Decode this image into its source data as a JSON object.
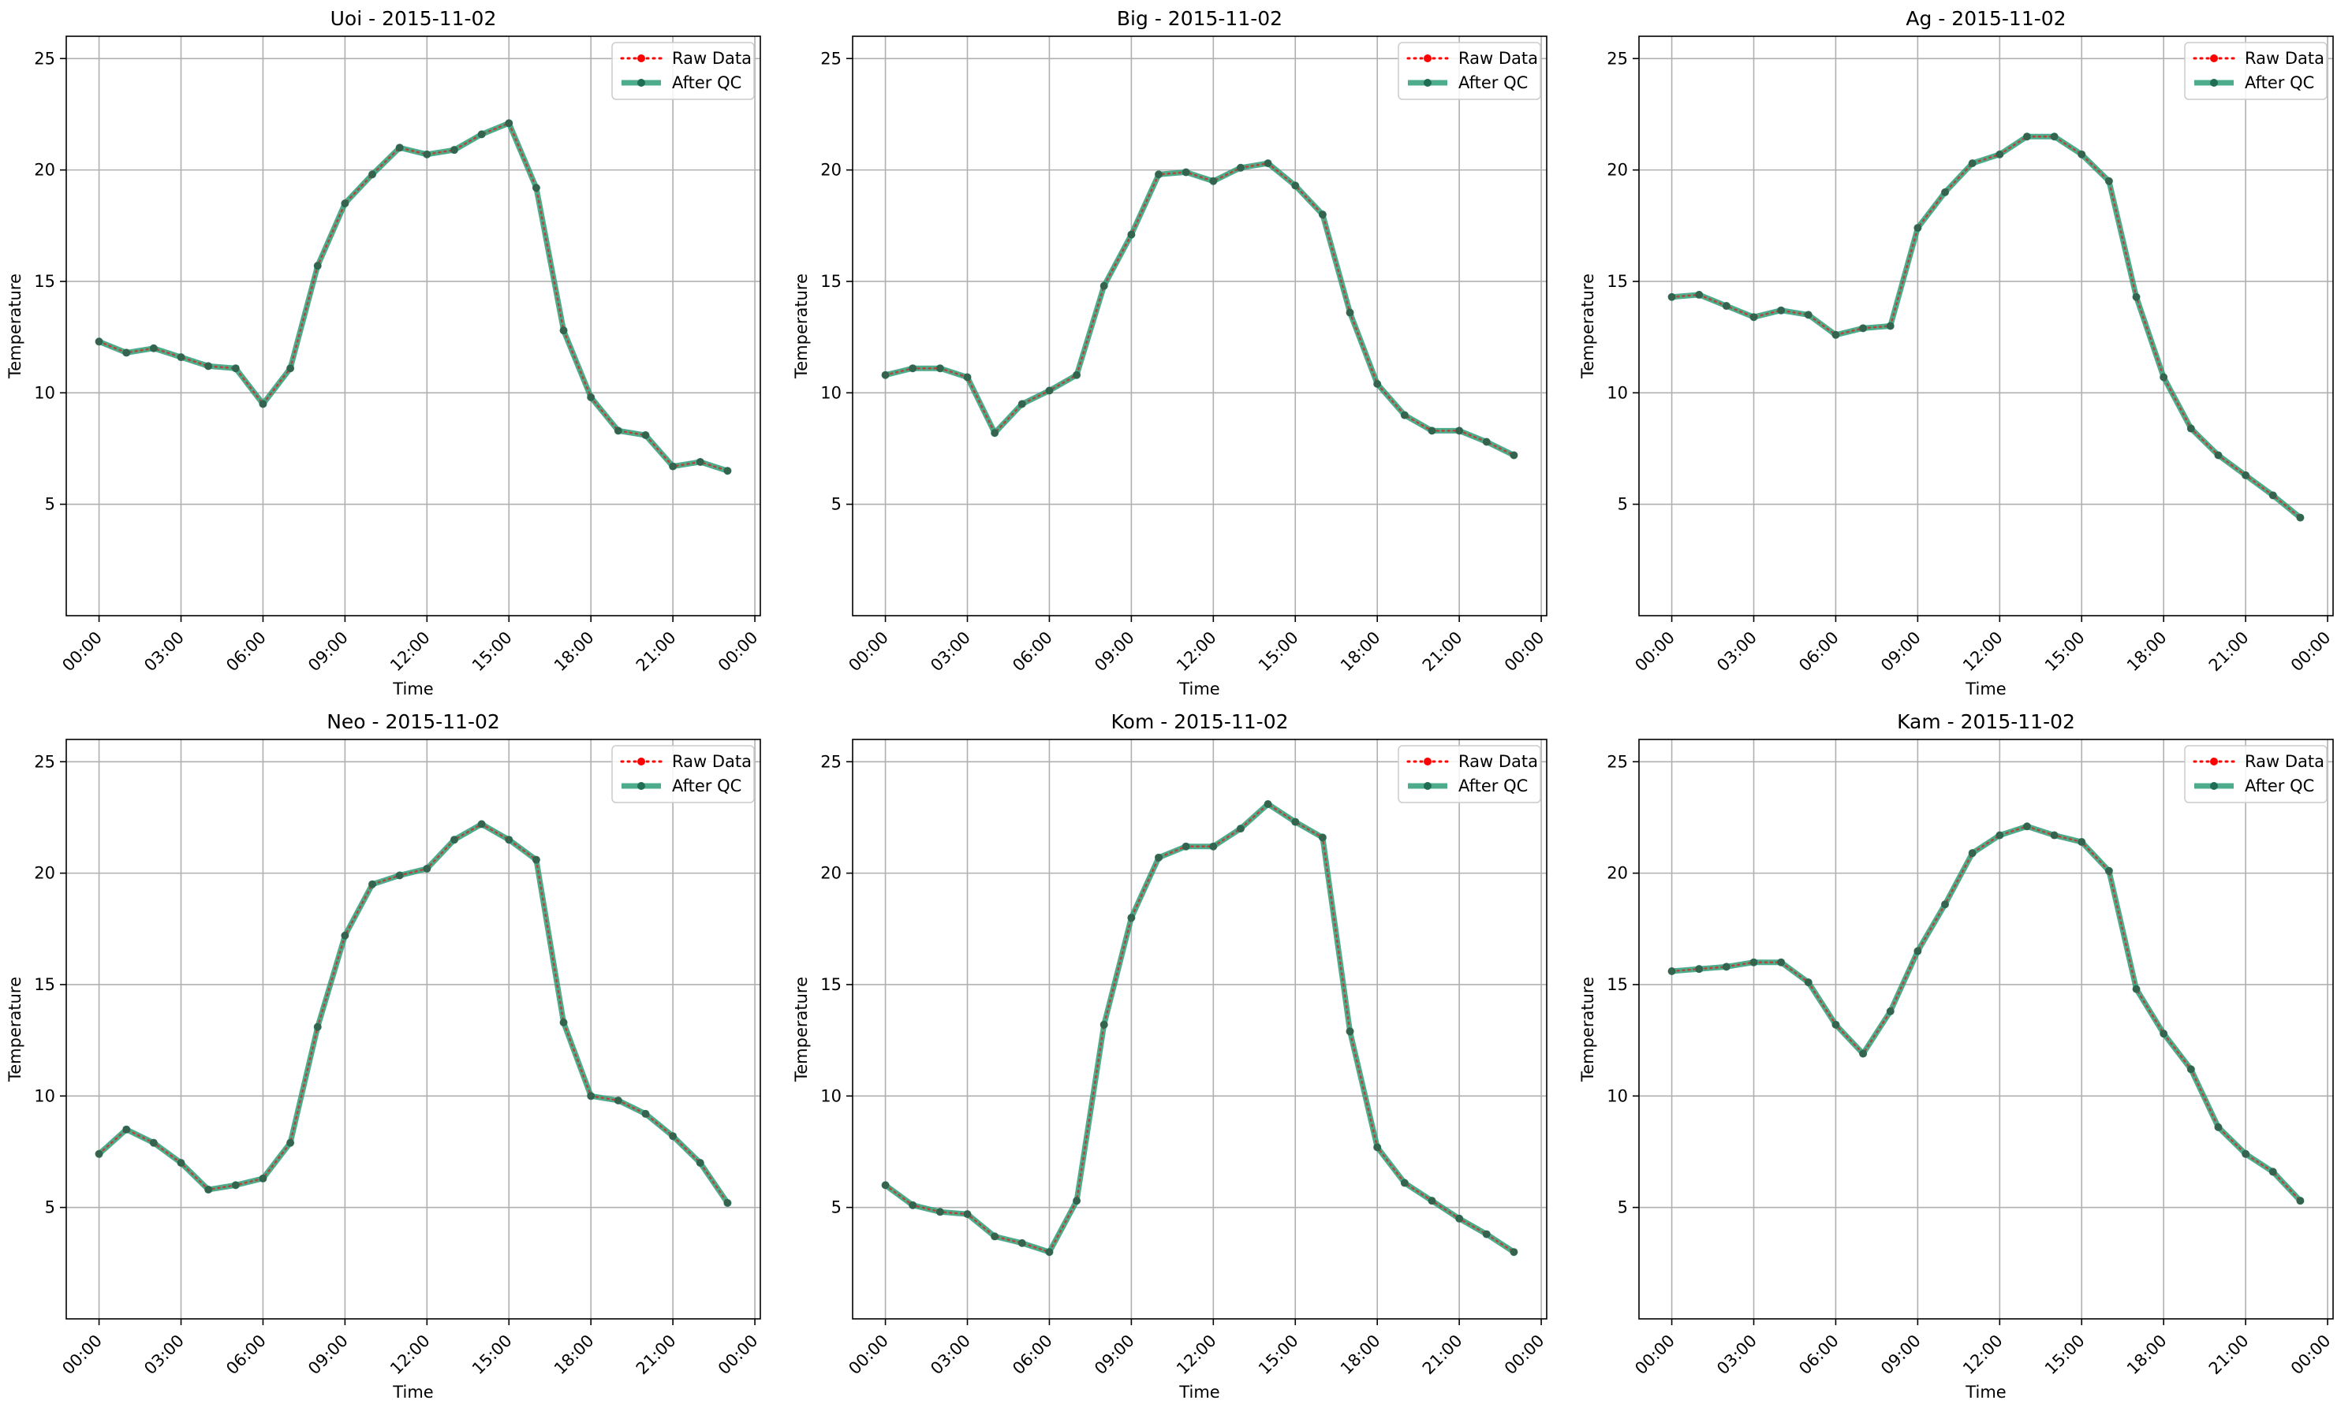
{
  "figure": {
    "colors": {
      "raw": "#ff0000",
      "qc": "#2e9e78",
      "qc_marker": "#1f6e55",
      "grid": "#b0b0b0",
      "axes": "#000000"
    },
    "legend": {
      "raw_label": "Raw Data",
      "qc_label": "After QC",
      "placement": "top-right"
    }
  },
  "chart_data": [
    {
      "type": "line",
      "title": "Uoi - 2015-11-02",
      "xlabel": "Time",
      "ylabel": "Temperature",
      "ylim": [
        0,
        26
      ],
      "yticks": [
        5,
        10,
        15,
        20,
        25
      ],
      "xlim_hours": [
        -1.2,
        24.2
      ],
      "xticks": [
        "00:00",
        "03:00",
        "06:00",
        "09:00",
        "12:00",
        "15:00",
        "18:00",
        "21:00",
        "00:00"
      ],
      "grid": true,
      "legend": "top-right",
      "x": [
        "00:00",
        "01:00",
        "02:00",
        "03:00",
        "04:00",
        "05:00",
        "06:00",
        "07:00",
        "08:00",
        "09:00",
        "10:00",
        "11:00",
        "12:00",
        "13:00",
        "14:00",
        "15:00",
        "16:00",
        "17:00",
        "18:00",
        "19:00",
        "20:00",
        "21:00",
        "22:00",
        "23:00"
      ],
      "series": [
        {
          "name": "Raw Data",
          "values": [
            12.3,
            11.8,
            12.0,
            11.6,
            11.2,
            11.1,
            9.5,
            11.1,
            15.7,
            18.5,
            19.8,
            21.0,
            20.7,
            20.9,
            21.6,
            22.1,
            19.2,
            12.8,
            9.8,
            8.3,
            8.1,
            6.7,
            6.9,
            6.5
          ]
        },
        {
          "name": "After QC",
          "values": [
            12.3,
            11.8,
            12.0,
            11.6,
            11.2,
            11.1,
            9.5,
            11.1,
            15.7,
            18.5,
            19.8,
            21.0,
            20.7,
            20.9,
            21.6,
            22.1,
            19.2,
            12.8,
            9.8,
            8.3,
            8.1,
            6.7,
            6.9,
            6.5
          ]
        }
      ]
    },
    {
      "type": "line",
      "title": "Big - 2015-11-02",
      "xlabel": "Time",
      "ylabel": "Temperature",
      "ylim": [
        0,
        26
      ],
      "yticks": [
        5,
        10,
        15,
        20,
        25
      ],
      "xlim_hours": [
        -1.2,
        24.2
      ],
      "xticks": [
        "00:00",
        "03:00",
        "06:00",
        "09:00",
        "12:00",
        "15:00",
        "18:00",
        "21:00",
        "00:00"
      ],
      "grid": true,
      "legend": "top-right",
      "x": [
        "00:00",
        "01:00",
        "02:00",
        "03:00",
        "04:00",
        "05:00",
        "06:00",
        "07:00",
        "08:00",
        "09:00",
        "10:00",
        "11:00",
        "12:00",
        "13:00",
        "14:00",
        "15:00",
        "16:00",
        "17:00",
        "18:00",
        "19:00",
        "20:00",
        "21:00",
        "22:00",
        "23:00"
      ],
      "series": [
        {
          "name": "Raw Data",
          "values": [
            10.8,
            11.1,
            11.1,
            10.7,
            8.2,
            9.5,
            10.1,
            10.8,
            14.8,
            17.1,
            19.8,
            19.9,
            19.5,
            20.1,
            20.3,
            19.3,
            18.0,
            13.6,
            10.4,
            9.0,
            8.3,
            8.3,
            7.8,
            7.2
          ]
        },
        {
          "name": "After QC",
          "values": [
            10.8,
            11.1,
            11.1,
            10.7,
            8.2,
            9.5,
            10.1,
            10.8,
            14.8,
            17.1,
            19.8,
            19.9,
            19.5,
            20.1,
            20.3,
            19.3,
            18.0,
            13.6,
            10.4,
            9.0,
            8.3,
            8.3,
            7.8,
            7.2
          ]
        }
      ]
    },
    {
      "type": "line",
      "title": "Ag - 2015-11-02",
      "xlabel": "Time",
      "ylabel": "Temperature",
      "ylim": [
        0,
        26
      ],
      "yticks": [
        5,
        10,
        15,
        20,
        25
      ],
      "xlim_hours": [
        -1.2,
        24.2
      ],
      "xticks": [
        "00:00",
        "03:00",
        "06:00",
        "09:00",
        "12:00",
        "15:00",
        "18:00",
        "21:00",
        "00:00"
      ],
      "grid": true,
      "legend": "top-right",
      "x": [
        "00:00",
        "01:00",
        "02:00",
        "03:00",
        "04:00",
        "05:00",
        "06:00",
        "07:00",
        "08:00",
        "09:00",
        "10:00",
        "11:00",
        "12:00",
        "13:00",
        "14:00",
        "15:00",
        "16:00",
        "17:00",
        "18:00",
        "19:00",
        "20:00",
        "21:00",
        "22:00",
        "23:00"
      ],
      "series": [
        {
          "name": "Raw Data",
          "values": [
            14.3,
            14.4,
            13.9,
            13.4,
            13.7,
            13.5,
            12.6,
            12.9,
            13.0,
            17.4,
            19.0,
            20.3,
            20.7,
            21.5,
            21.5,
            20.7,
            19.5,
            14.3,
            10.7,
            8.4,
            7.2,
            6.3,
            5.4,
            4.4
          ]
        },
        {
          "name": "After QC",
          "values": [
            14.3,
            14.4,
            13.9,
            13.4,
            13.7,
            13.5,
            12.6,
            12.9,
            13.0,
            17.4,
            19.0,
            20.3,
            20.7,
            21.5,
            21.5,
            20.7,
            19.5,
            14.3,
            10.7,
            8.4,
            7.2,
            6.3,
            5.4,
            4.4
          ]
        }
      ]
    },
    {
      "type": "line",
      "title": "Neo - 2015-11-02",
      "xlabel": "Time",
      "ylabel": "Temperature",
      "ylim": [
        0,
        26
      ],
      "yticks": [
        5,
        10,
        15,
        20,
        25
      ],
      "xlim_hours": [
        -1.2,
        24.2
      ],
      "xticks": [
        "00:00",
        "03:00",
        "06:00",
        "09:00",
        "12:00",
        "15:00",
        "18:00",
        "21:00",
        "00:00"
      ],
      "grid": true,
      "legend": "top-right",
      "x": [
        "00:00",
        "01:00",
        "02:00",
        "03:00",
        "04:00",
        "05:00",
        "06:00",
        "07:00",
        "08:00",
        "09:00",
        "10:00",
        "11:00",
        "12:00",
        "13:00",
        "14:00",
        "15:00",
        "16:00",
        "17:00",
        "18:00",
        "19:00",
        "20:00",
        "21:00",
        "22:00",
        "23:00"
      ],
      "series": [
        {
          "name": "Raw Data",
          "values": [
            7.4,
            8.5,
            7.9,
            7.0,
            5.8,
            6.0,
            6.3,
            7.9,
            13.1,
            17.2,
            19.5,
            19.9,
            20.2,
            21.5,
            22.2,
            21.5,
            20.6,
            13.3,
            10.0,
            9.8,
            9.2,
            8.2,
            7.0,
            5.2
          ]
        },
        {
          "name": "After QC",
          "values": [
            7.4,
            8.5,
            7.9,
            7.0,
            5.8,
            6.0,
            6.3,
            7.9,
            13.1,
            17.2,
            19.5,
            19.9,
            20.2,
            21.5,
            22.2,
            21.5,
            20.6,
            13.3,
            10.0,
            9.8,
            9.2,
            8.2,
            7.0,
            5.2
          ]
        }
      ]
    },
    {
      "type": "line",
      "title": "Kom - 2015-11-02",
      "xlabel": "Time",
      "ylabel": "Temperature",
      "ylim": [
        0,
        26
      ],
      "yticks": [
        5,
        10,
        15,
        20,
        25
      ],
      "xlim_hours": [
        -1.2,
        24.2
      ],
      "xticks": [
        "00:00",
        "03:00",
        "06:00",
        "09:00",
        "12:00",
        "15:00",
        "18:00",
        "21:00",
        "00:00"
      ],
      "grid": true,
      "legend": "top-right",
      "x": [
        "00:00",
        "01:00",
        "02:00",
        "03:00",
        "04:00",
        "05:00",
        "06:00",
        "07:00",
        "08:00",
        "09:00",
        "10:00",
        "11:00",
        "12:00",
        "13:00",
        "14:00",
        "15:00",
        "16:00",
        "17:00",
        "18:00",
        "19:00",
        "20:00",
        "21:00",
        "22:00",
        "23:00"
      ],
      "series": [
        {
          "name": "Raw Data",
          "values": [
            6.0,
            5.1,
            4.8,
            4.7,
            3.7,
            3.4,
            3.0,
            5.3,
            13.2,
            18.0,
            20.7,
            21.2,
            21.2,
            22.0,
            23.1,
            22.3,
            21.6,
            12.9,
            7.7,
            6.1,
            5.3,
            4.5,
            3.8,
            3.0
          ]
        },
        {
          "name": "After QC",
          "values": [
            6.0,
            5.1,
            4.8,
            4.7,
            3.7,
            3.4,
            3.0,
            5.3,
            13.2,
            18.0,
            20.7,
            21.2,
            21.2,
            22.0,
            23.1,
            22.3,
            21.6,
            12.9,
            7.7,
            6.1,
            5.3,
            4.5,
            3.8,
            3.0
          ]
        }
      ]
    },
    {
      "type": "line",
      "title": "Kam - 2015-11-02",
      "xlabel": "Time",
      "ylabel": "Temperature",
      "ylim": [
        0,
        26
      ],
      "yticks": [
        5,
        10,
        15,
        20,
        25
      ],
      "xlim_hours": [
        -1.2,
        24.2
      ],
      "xticks": [
        "00:00",
        "03:00",
        "06:00",
        "09:00",
        "12:00",
        "15:00",
        "18:00",
        "21:00",
        "00:00"
      ],
      "grid": true,
      "legend": "top-right",
      "x": [
        "00:00",
        "01:00",
        "02:00",
        "03:00",
        "04:00",
        "05:00",
        "06:00",
        "07:00",
        "08:00",
        "09:00",
        "10:00",
        "11:00",
        "12:00",
        "13:00",
        "14:00",
        "15:00",
        "16:00",
        "17:00",
        "18:00",
        "19:00",
        "20:00",
        "21:00",
        "22:00",
        "23:00"
      ],
      "series": [
        {
          "name": "Raw Data",
          "values": [
            15.6,
            15.7,
            15.8,
            16.0,
            16.0,
            15.1,
            13.2,
            11.9,
            13.8,
            16.5,
            18.6,
            20.9,
            21.7,
            22.1,
            21.7,
            21.4,
            20.1,
            14.8,
            12.8,
            11.2,
            8.6,
            7.4,
            6.6,
            5.3
          ]
        },
        {
          "name": "After QC",
          "values": [
            15.6,
            15.7,
            15.8,
            16.0,
            16.0,
            15.1,
            13.2,
            11.9,
            13.8,
            16.5,
            18.6,
            20.9,
            21.7,
            22.1,
            21.7,
            21.4,
            20.1,
            14.8,
            12.8,
            11.2,
            8.6,
            7.4,
            6.6,
            5.3
          ]
        }
      ]
    }
  ]
}
